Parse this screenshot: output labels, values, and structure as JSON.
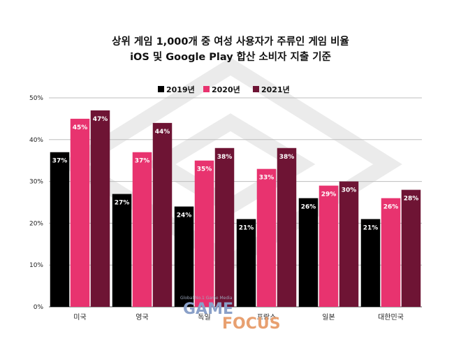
{
  "chart_data": {
    "type": "bar",
    "title": "상위 게임 1,000개 중 여성 사용자가 주류인 게임 비율",
    "subtitle": "iOS 및 Google Play 합산 소비자 지출 기준",
    "categories": [
      "미국",
      "영국",
      "독일",
      "프랑스",
      "일본",
      "대한민국"
    ],
    "series": [
      {
        "name": "2019년",
        "color": "#000000",
        "values": [
          37,
          27,
          24,
          21,
          26,
          21
        ],
        "labels": [
          "37%",
          "27%",
          "24%",
          "21%",
          "26%",
          "21%"
        ]
      },
      {
        "name": "2020년",
        "color": "#e8336f",
        "values": [
          45,
          37,
          35,
          33,
          29,
          26
        ],
        "labels": [
          "45%",
          "37%",
          "35%",
          "33%",
          "29%",
          "26%"
        ]
      },
      {
        "name": "2021년",
        "color": "#6e1434",
        "values": [
          47,
          44,
          38,
          38,
          30,
          28
        ],
        "labels": [
          "47%",
          "44%",
          "38%",
          "38%",
          "30%",
          "28%"
        ]
      }
    ],
    "ylim": [
      0,
      50
    ],
    "yticks": [
      "0%",
      "10%",
      "20%",
      "30%",
      "40%",
      "50%"
    ],
    "grid": true,
    "legend_position": "top"
  },
  "watermark": {
    "tagline": "Global No.1 Game Media",
    "brand_part1": "GAME",
    "brand_part2": "FOCUS",
    "colors": {
      "part1": "#8aa0c8",
      "part2": "#e8a070"
    }
  }
}
